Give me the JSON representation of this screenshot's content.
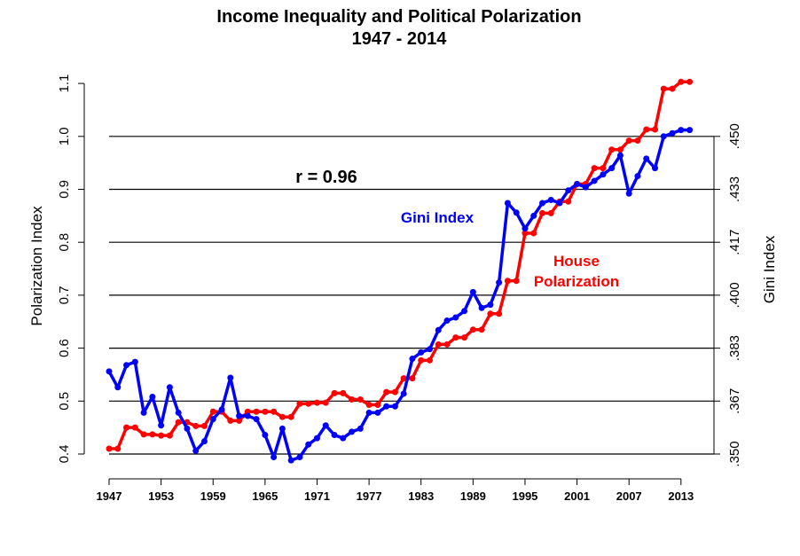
{
  "chart_data": {
    "type": "line",
    "title": "Income Inequality and Political Polarization",
    "subtitle": "1947 - 2014",
    "ylabel": "Polarization Index",
    "y2label": "Gini Index",
    "ylim": [
      0.4,
      1.1
    ],
    "y2lim": [
      0.35,
      0.4667
    ],
    "grid": true,
    "annotation": "r = 0.96",
    "x_ticks": [
      "1947",
      "1953",
      "1959",
      "1965",
      "1971",
      "1977",
      "1983",
      "1989",
      "1995",
      "2001",
      "2007",
      "2013"
    ],
    "y_ticks": [
      "0.4",
      "0.5",
      "0.6",
      "0.7",
      "0.8",
      "0.9",
      "1.0",
      "1.1"
    ],
    "y2_ticks": [
      ".350",
      ".367",
      ".383",
      ".400",
      ".417",
      ".433",
      ".450"
    ],
    "x": [
      1947,
      1948,
      1949,
      1950,
      1951,
      1952,
      1953,
      1954,
      1955,
      1956,
      1957,
      1958,
      1959,
      1960,
      1961,
      1962,
      1963,
      1964,
      1965,
      1966,
      1967,
      1968,
      1969,
      1970,
      1971,
      1972,
      1973,
      1974,
      1975,
      1976,
      1977,
      1978,
      1979,
      1980,
      1981,
      1982,
      1983,
      1984,
      1985,
      1986,
      1987,
      1988,
      1989,
      1990,
      1991,
      1992,
      1993,
      1994,
      1995,
      1996,
      1997,
      1998,
      1999,
      2000,
      2001,
      2002,
      2003,
      2004,
      2005,
      2006,
      2007,
      2008,
      2009,
      2010,
      2011,
      2012,
      2013,
      2014
    ],
    "series": [
      {
        "name": "House Polarization",
        "color": "#ff0000",
        "axis": "left",
        "values": [
          0.41,
          0.41,
          0.45,
          0.45,
          0.437,
          0.437,
          0.435,
          0.435,
          0.46,
          0.46,
          0.453,
          0.453,
          0.48,
          0.48,
          0.463,
          0.463,
          0.48,
          0.48,
          0.48,
          0.48,
          0.47,
          0.47,
          0.495,
          0.495,
          0.497,
          0.497,
          0.515,
          0.515,
          0.503,
          0.503,
          0.493,
          0.493,
          0.517,
          0.517,
          0.543,
          0.543,
          0.577,
          0.577,
          0.607,
          0.607,
          0.62,
          0.62,
          0.635,
          0.635,
          0.665,
          0.665,
          0.727,
          0.727,
          0.817,
          0.817,
          0.855,
          0.855,
          0.877,
          0.877,
          0.91,
          0.91,
          0.94,
          0.94,
          0.975,
          0.975,
          0.992,
          0.992,
          1.013,
          1.013,
          1.09,
          1.09,
          1.103,
          1.103
        ]
      },
      {
        "name": "Gini Index",
        "color": "#0000ff",
        "axis": "right",
        "values": [
          0.376,
          0.371,
          0.378,
          0.379,
          0.363,
          0.368,
          0.359,
          0.371,
          0.363,
          0.358,
          0.351,
          0.354,
          0.361,
          0.364,
          0.374,
          0.362,
          0.362,
          0.361,
          0.356,
          0.349,
          0.358,
          0.348,
          0.349,
          0.353,
          0.355,
          0.359,
          0.356,
          0.355,
          0.357,
          0.358,
          0.363,
          0.363,
          0.365,
          0.365,
          0.369,
          0.38,
          0.382,
          0.383,
          0.389,
          0.392,
          0.393,
          0.395,
          0.401,
          0.396,
          0.397,
          0.404,
          0.429,
          0.426,
          0.421,
          0.425,
          0.429,
          0.43,
          0.429,
          0.433,
          0.435,
          0.434,
          0.436,
          0.438,
          0.44,
          0.444,
          0.432,
          0.4375,
          0.443,
          0.44,
          0.45,
          0.451,
          0.452,
          0.452
        ]
      }
    ]
  }
}
